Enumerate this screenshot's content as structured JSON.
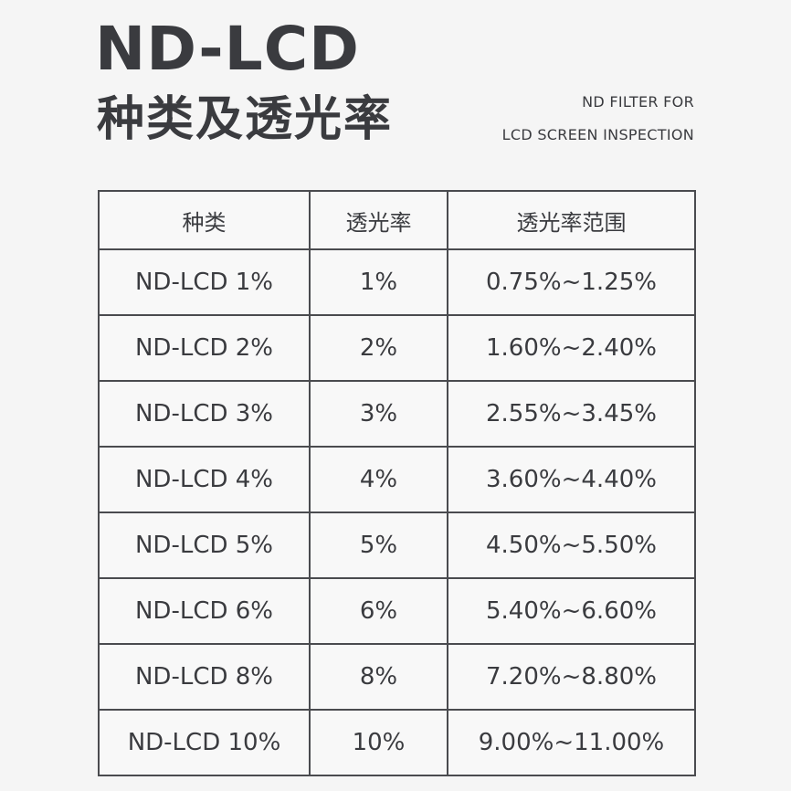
{
  "header": {
    "title": "ND-LCD",
    "subtitle": "种类及透光率",
    "tagline_line1": "ND FILTER FOR",
    "tagline_line2": "LCD SCREEN INSPECTION"
  },
  "table": {
    "columns": [
      "种类",
      "透光率",
      "透光率范围"
    ],
    "rows": [
      [
        "ND-LCD 1%",
        "1%",
        "0.75%~1.25%"
      ],
      [
        "ND-LCD 2%",
        "2%",
        "1.60%~2.40%"
      ],
      [
        "ND-LCD 3%",
        "3%",
        "2.55%~3.45%"
      ],
      [
        "ND-LCD 4%",
        "4%",
        "3.60%~4.40%"
      ],
      [
        "ND-LCD 5%",
        "5%",
        "4.50%~5.50%"
      ],
      [
        "ND-LCD 6%",
        "6%",
        "5.40%~6.60%"
      ],
      [
        "ND-LCD 8%",
        "8%",
        "7.20%~8.80%"
      ],
      [
        "ND-LCD 10%",
        "10%",
        "9.00%~11.00%"
      ]
    ]
  },
  "colors": {
    "background": "#f5f5f5",
    "text": "#3a3b3f",
    "border": "#4a4b4f"
  }
}
